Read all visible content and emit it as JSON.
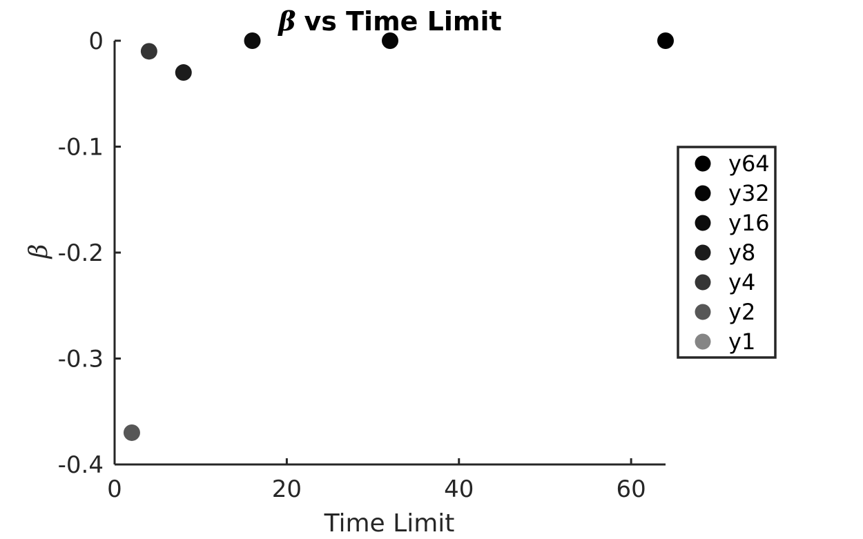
{
  "chart_data": {
    "type": "scatter",
    "title": "vs Time Limit",
    "title_symbol": "β",
    "xlabel": "Time Limit",
    "ylabel": "β",
    "xlim": [
      0,
      64
    ],
    "ylim": [
      -0.4,
      0
    ],
    "xticks": [
      0,
      20,
      40,
      60
    ],
    "yticks": [
      0,
      -0.1,
      -0.2,
      -0.3,
      -0.4
    ],
    "xtick_labels": [
      "0",
      "20",
      "40",
      "60"
    ],
    "ytick_labels": [
      "0",
      "-0.1",
      "-0.2",
      "-0.3",
      "-0.4"
    ],
    "grid": false,
    "legend_position": "right",
    "series": [
      {
        "name": "y64",
        "color": "#000000",
        "points": [
          {
            "x": 64,
            "y": 0
          }
        ]
      },
      {
        "name": "y32",
        "color": "#050505",
        "points": [
          {
            "x": 32,
            "y": 0
          }
        ]
      },
      {
        "name": "y16",
        "color": "#0d0d0d",
        "points": [
          {
            "x": 16,
            "y": 0
          }
        ]
      },
      {
        "name": "y8",
        "color": "#1c1c1c",
        "points": [
          {
            "x": 8,
            "y": -0.03
          }
        ]
      },
      {
        "name": "y4",
        "color": "#353535",
        "points": [
          {
            "x": 4,
            "y": -0.01
          }
        ]
      },
      {
        "name": "y2",
        "color": "#575757",
        "points": [
          {
            "x": 2,
            "y": -0.37
          }
        ]
      },
      {
        "name": "y1",
        "color": "#858585",
        "points": []
      }
    ]
  }
}
